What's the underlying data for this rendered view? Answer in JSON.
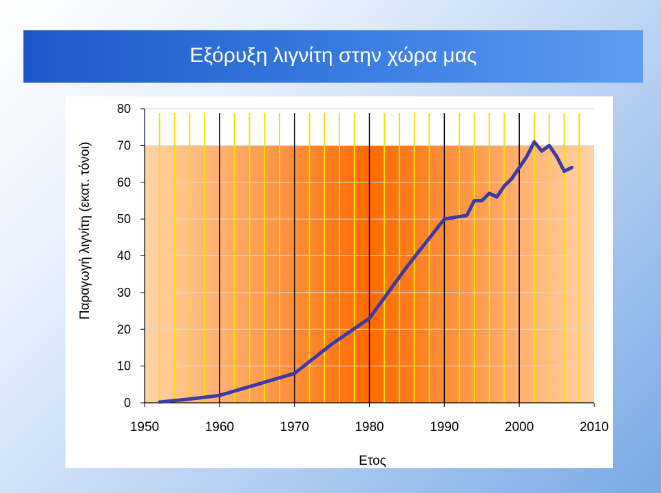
{
  "title": "Εξόρυξη λιγνίτη στην χώρα μας",
  "colors": {
    "banner": "#2b6bd6",
    "line": "#3b3aa6",
    "plot_center": "#ff6a00",
    "plot_edge": "#ffd3a6",
    "minor_grid": "#f5e100",
    "major_grid": "#000000"
  },
  "chart_data": {
    "type": "line",
    "title": "Εξόρυξη λιγνίτη στην χώρα μας",
    "xlabel": "Ετος",
    "ylabel": "Παραγωγή λιγνίτη (εκατ. τόνοι)",
    "xlim": [
      1950,
      2010
    ],
    "ylim": [
      0,
      80
    ],
    "xticks": [
      "1950",
      "1960",
      "1970",
      "1980",
      "1990",
      "2000",
      "2010"
    ],
    "yticks": [
      "0",
      "10",
      "20",
      "30",
      "40",
      "50",
      "60",
      "70",
      "80"
    ],
    "grid": true,
    "series": [
      {
        "x": [
          1952,
          1955,
          1958,
          1960,
          1965,
          1970,
          1975,
          1980,
          1985,
          1990,
          1993,
          1994,
          1995,
          1996,
          1997,
          1998,
          1999,
          2000,
          2001,
          2002,
          2003,
          2004,
          2005,
          2006,
          2007
        ],
        "values": [
          0.2,
          0.8,
          1.5,
          2,
          5,
          8,
          16,
          23,
          37,
          50,
          51,
          55,
          55,
          57,
          56,
          59,
          61,
          64,
          67,
          71,
          68.5,
          70,
          67,
          63,
          64
        ]
      }
    ]
  }
}
